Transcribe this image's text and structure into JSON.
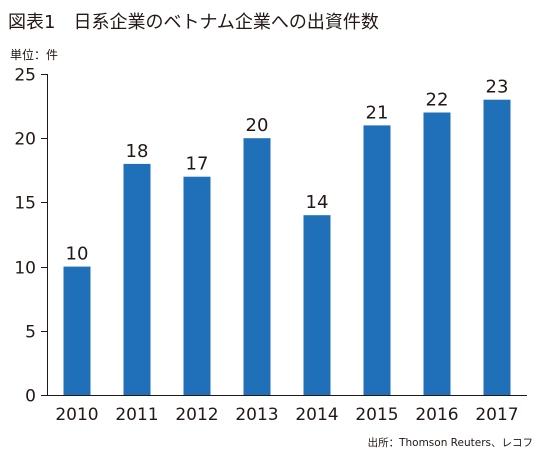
{
  "figure": {
    "title": "図表1　日系企業のベトナム企業への出資件数",
    "unit_label": "単位：件",
    "source": "出所：Thomson Reuters、レコフ",
    "bar_color": "#1f6fb9",
    "text_color": "#231815"
  },
  "chart_data": {
    "type": "bar",
    "title": "図表1　日系企業のベトナム企業への出資件数",
    "xlabel": "",
    "ylabel": "単位：件",
    "categories": [
      "2010",
      "2011",
      "2012",
      "2013",
      "2014",
      "2015",
      "2016",
      "2017"
    ],
    "values": [
      10,
      18,
      17,
      20,
      14,
      21,
      22,
      23
    ],
    "data_labels": [
      "10",
      "18",
      "17",
      "20",
      "14",
      "21",
      "22",
      "23"
    ],
    "ylim": [
      0,
      25
    ],
    "yticks": [
      0,
      5,
      10,
      15,
      20,
      25
    ],
    "ytick_labels": [
      "0",
      "5",
      "10",
      "15",
      "20",
      "25"
    ],
    "grid": false,
    "legend": "none"
  }
}
